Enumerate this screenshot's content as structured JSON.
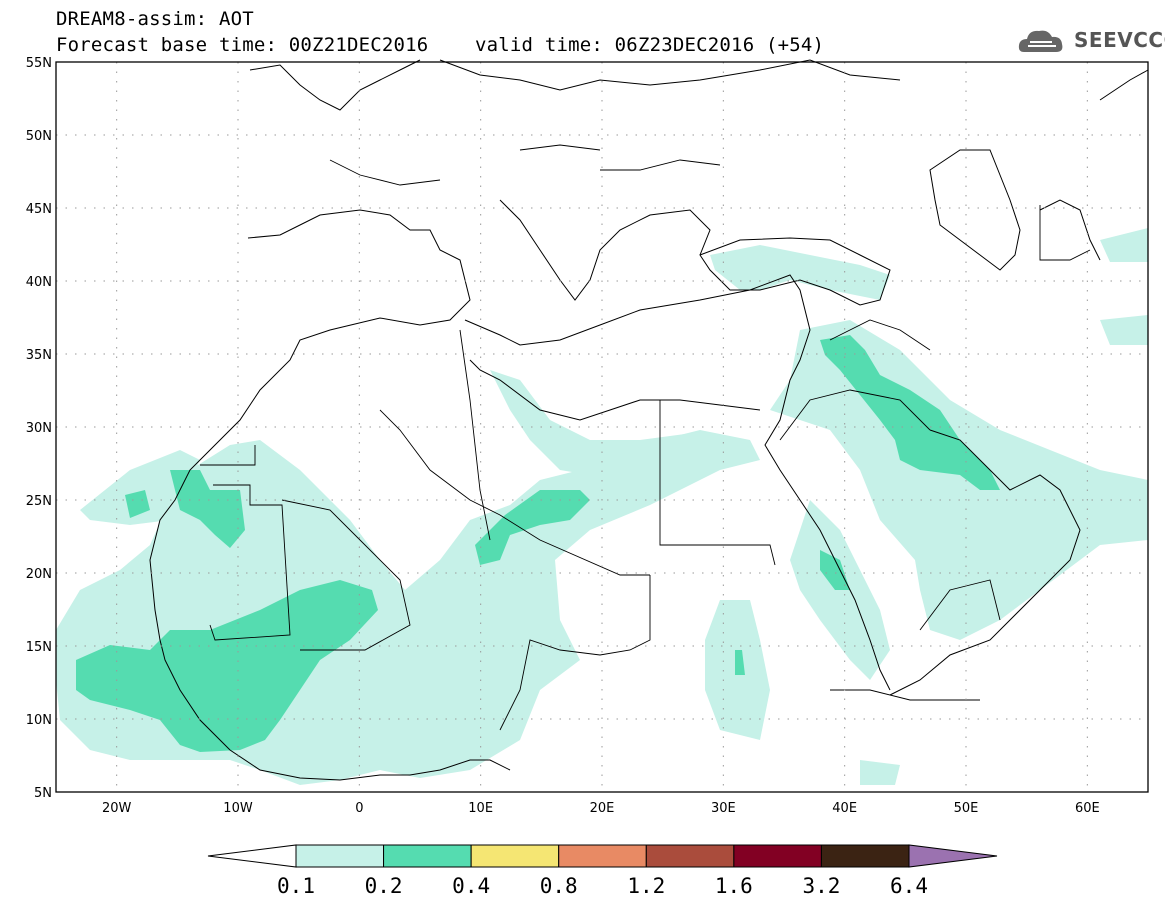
{
  "header": {
    "line1": "DREAM8-assim: AOT",
    "line2": "Forecast base time: 00Z21DEC2016    valid time: 06Z23DEC2016 (+54)"
  },
  "logo": {
    "text": "SEEVCCC",
    "icon": "cloud-logo-icon"
  },
  "map": {
    "lat_ticks": [
      "55N",
      "50N",
      "45N",
      "40N",
      "35N",
      "30N",
      "25N",
      "20N",
      "15N",
      "10N",
      "5N"
    ],
    "lon_ticks": [
      "20W",
      "10W",
      "0",
      "10E",
      "20E",
      "30E",
      "40E",
      "50E",
      "60E"
    ],
    "extent": {
      "lon": [
        -25,
        65
      ],
      "lat": [
        5,
        55
      ]
    }
  },
  "colorbar": {
    "labels": [
      "0.1",
      "0.2",
      "0.4",
      "0.8",
      "1.2",
      "1.6",
      "3.2",
      "6.4"
    ],
    "colors": [
      "#ffffff",
      "#c6f1e8",
      "#55dcb0",
      "#f5e673",
      "#e88a64",
      "#aa4c3c",
      "#820023",
      "#3b2313",
      "#9b72b0"
    ]
  }
}
